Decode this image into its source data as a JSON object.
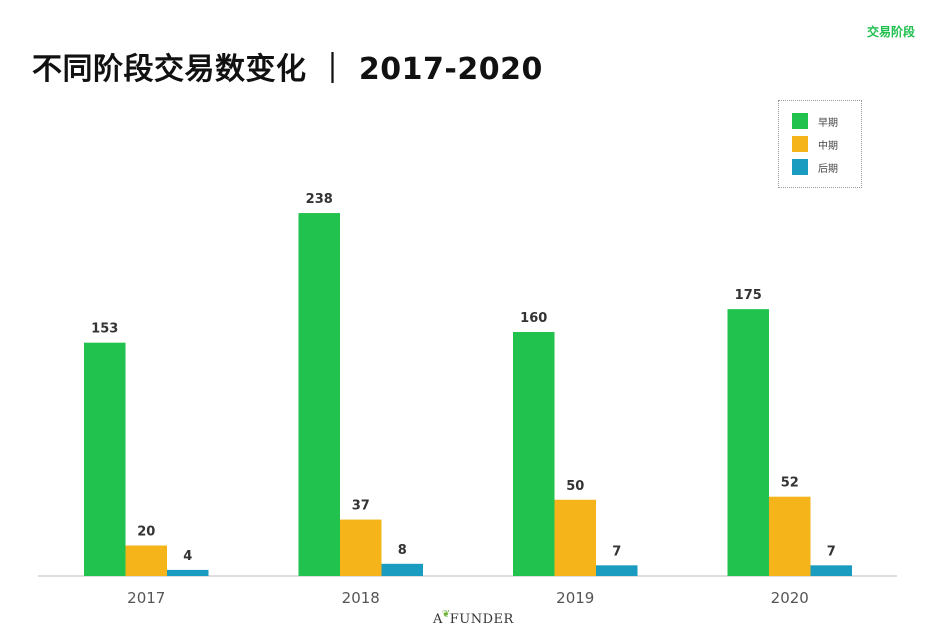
{
  "section_tag": "交易阶段",
  "title": "不同阶段交易数变化 ｜ 2017-2020",
  "logo": {
    "text_before": "A",
    "text_after": "FUNDER"
  },
  "colors": {
    "early": "#21c24e",
    "mid": "#f5b51a",
    "late": "#1a9cc0",
    "axis": "#bdbdbd"
  },
  "chart_data": {
    "type": "bar",
    "categories": [
      "2017",
      "2018",
      "2019",
      "2020"
    ],
    "series": [
      {
        "name": "早期",
        "values": [
          153,
          238,
          160,
          175
        ]
      },
      {
        "name": "中期",
        "values": [
          20,
          37,
          50,
          52
        ]
      },
      {
        "name": "后期",
        "values": [
          4,
          8,
          7,
          7
        ]
      }
    ],
    "ylim": [
      0,
      250
    ],
    "legend": "top-right",
    "grid": false,
    "data_labels": true
  }
}
